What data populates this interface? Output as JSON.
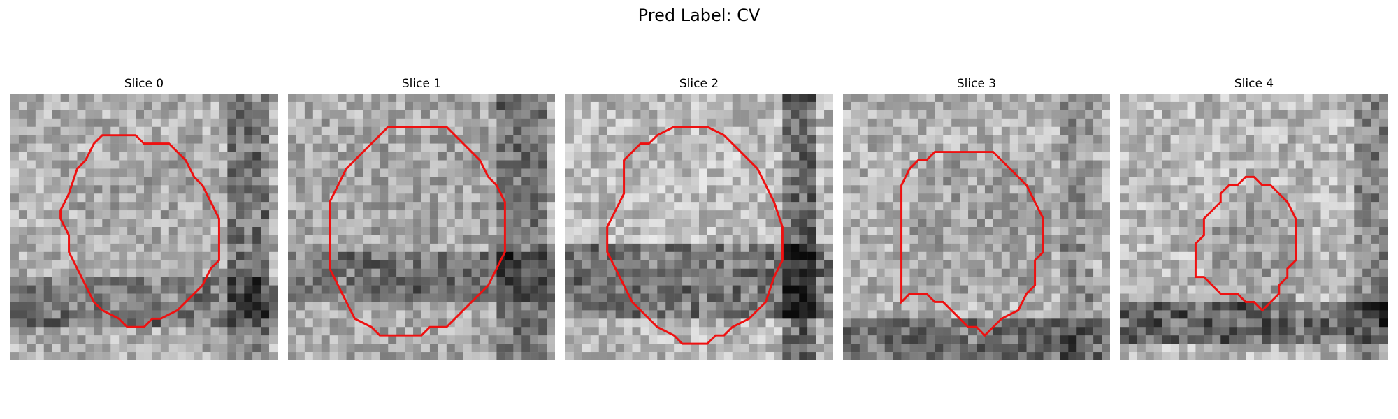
{
  "figure": {
    "title": "Pred Label: CV"
  },
  "panels": [
    {
      "title": "Slice 0"
    },
    {
      "title": "Slice 1"
    },
    {
      "title": "Slice 2"
    },
    {
      "title": "Slice 3"
    },
    {
      "title": "Slice 4"
    }
  ],
  "colors": {
    "contour": "#ee1111",
    "background": "#ffffff"
  }
}
